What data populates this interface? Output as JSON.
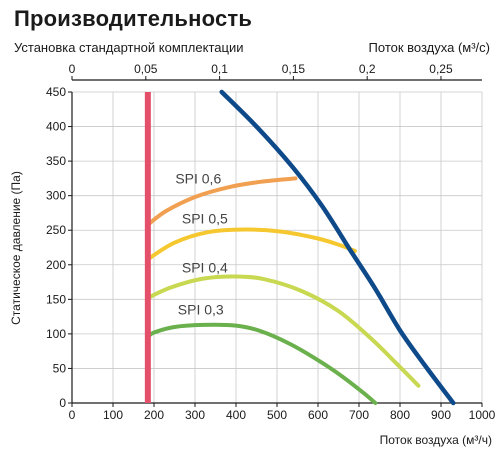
{
  "header": {
    "title": "Производительность",
    "subtitle": "Установка стандартной комплектации"
  },
  "chart_data": {
    "type": "line",
    "xlabel": "Поток воздуха (м³/ч)",
    "x2label": "Поток воздуха (м³/с)",
    "ylabel": "Статическое давление (Па)",
    "xlim": [
      0,
      1000
    ],
    "ylim": [
      0,
      450
    ],
    "x2lim": [
      0,
      0.2778
    ],
    "xticks": [
      0,
      100,
      200,
      300,
      400,
      500,
      600,
      700,
      800,
      900,
      1000
    ],
    "x2ticks": [
      0,
      0.05,
      0.1,
      0.15,
      0.2,
      0.25
    ],
    "x2ticklabels": [
      "0",
      "0,05",
      "0,1",
      "0,15",
      "0,2",
      "0,25"
    ],
    "yticks": [
      0,
      50,
      100,
      150,
      200,
      250,
      300,
      350,
      400,
      450
    ],
    "grid": true,
    "limit_line": {
      "x": 185,
      "color": "#e4506a"
    },
    "fan_curve": {
      "color": "#0e4a8a",
      "points": [
        [
          365,
          450
        ],
        [
          450,
          400
        ],
        [
          540,
          340
        ],
        [
          610,
          285
        ],
        [
          680,
          220
        ],
        [
          740,
          165
        ],
        [
          800,
          105
        ],
        [
          860,
          55
        ],
        [
          930,
          0
        ]
      ]
    },
    "series": [
      {
        "name": "SPI 0,6",
        "color": "#f0a050",
        "points": [
          [
            185,
            258
          ],
          [
            230,
            278
          ],
          [
            300,
            298
          ],
          [
            380,
            312
          ],
          [
            460,
            320
          ],
          [
            545,
            325
          ]
        ]
      },
      {
        "name": "SPI 0,5",
        "color": "#f5c830",
        "points": [
          [
            185,
            208
          ],
          [
            250,
            232
          ],
          [
            330,
            247
          ],
          [
            420,
            251
          ],
          [
            510,
            248
          ],
          [
            600,
            238
          ],
          [
            655,
            228
          ],
          [
            690,
            220
          ]
        ]
      },
      {
        "name": "SPI 0,4",
        "color": "#c8d850",
        "points": [
          [
            185,
            152
          ],
          [
            240,
            167
          ],
          [
            320,
            180
          ],
          [
            400,
            183
          ],
          [
            470,
            179
          ],
          [
            560,
            162
          ],
          [
            650,
            133
          ],
          [
            730,
            93
          ],
          [
            790,
            58
          ],
          [
            845,
            25
          ]
        ]
      },
      {
        "name": "SPI 0,3",
        "color": "#6ab04c",
        "points": [
          [
            185,
            96
          ],
          [
            200,
            102
          ],
          [
            250,
            110
          ],
          [
            320,
            113
          ],
          [
            400,
            112
          ],
          [
            460,
            104
          ],
          [
            530,
            86
          ],
          [
            600,
            62
          ],
          [
            660,
            38
          ],
          [
            710,
            15
          ],
          [
            740,
            0
          ]
        ]
      }
    ],
    "series_label_anchor": [
      [
        252,
        325
      ],
      [
        268,
        267
      ],
      [
        268,
        196
      ],
      [
        258,
        135
      ]
    ]
  }
}
